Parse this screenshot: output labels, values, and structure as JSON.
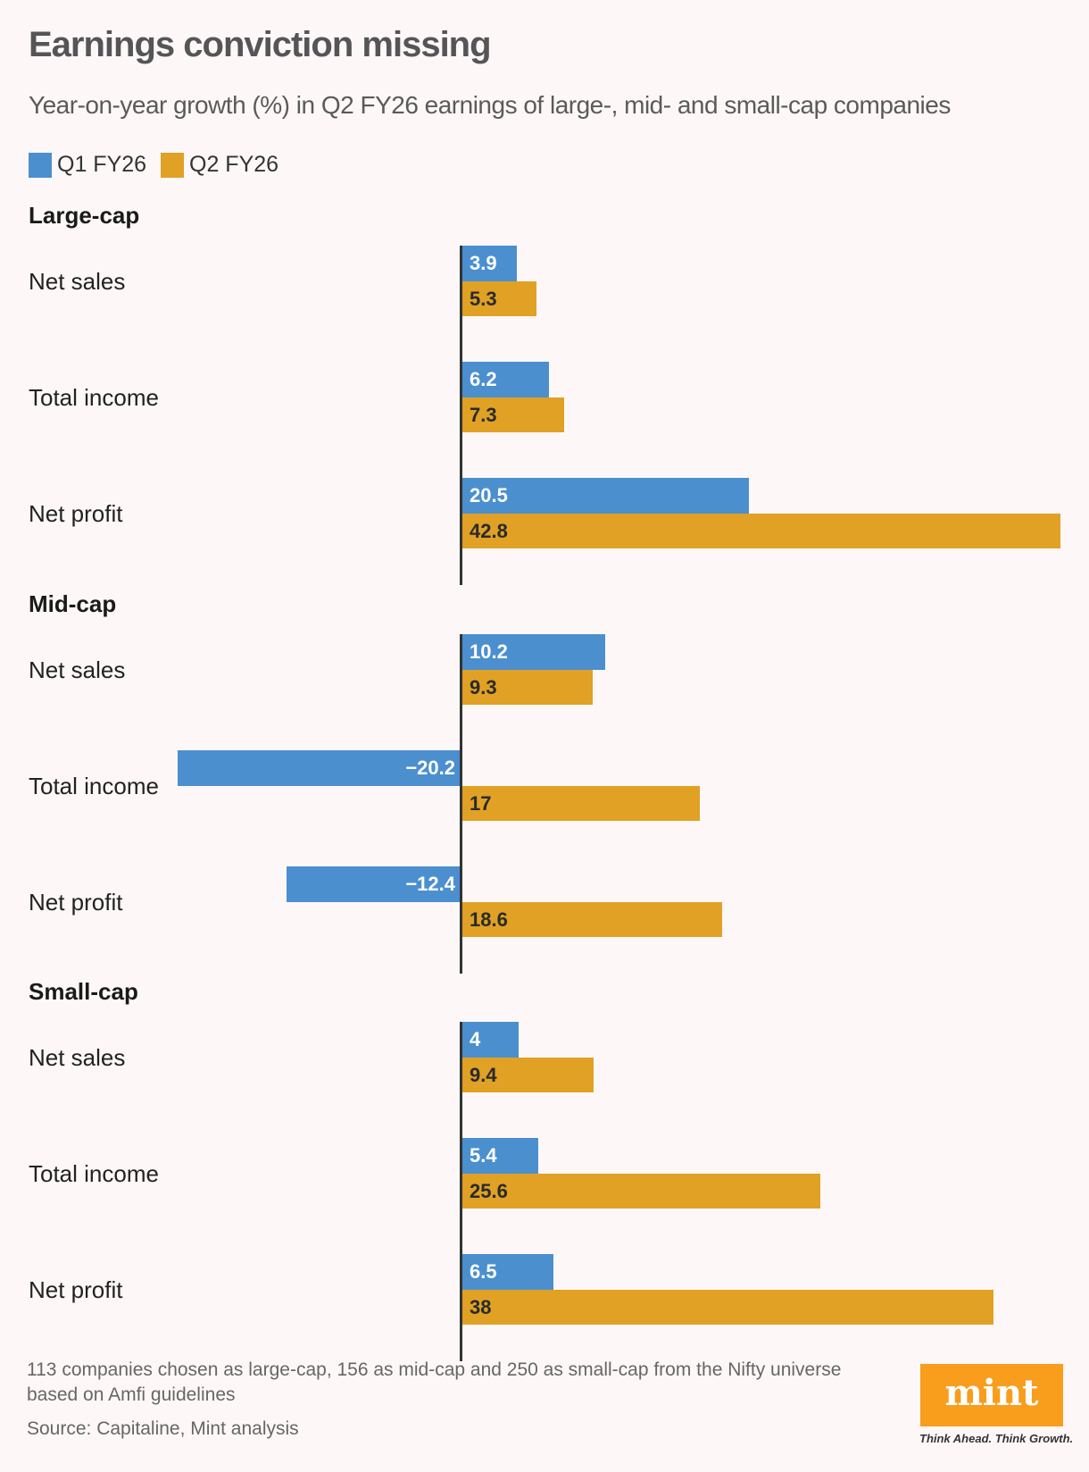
{
  "chart_data": {
    "type": "bar",
    "orientation": "horizontal",
    "title": "Earnings conviction missing",
    "subtitle": "Year-on-year growth (%) in Q2 FY26 earnings of large-, mid- and small-cap companies",
    "legend": [
      {
        "name": "Q1 FY26",
        "color": "#4b8fcf"
      },
      {
        "name": "Q2 FY26",
        "color": "#e0a125"
      }
    ],
    "legend_placement": "top-left",
    "grid": false,
    "categories": [
      "Net sales",
      "Total income",
      "Net profit"
    ],
    "panels": [
      {
        "name": "Large-cap",
        "series": [
          {
            "name": "Q1 FY26",
            "values": [
              3.9,
              6.2,
              20.5
            ],
            "labels": [
              "3.9",
              "6.2",
              "20.5"
            ]
          },
          {
            "name": "Q2 FY26",
            "values": [
              5.3,
              7.3,
              42.8
            ],
            "labels": [
              "5.3",
              "7.3",
              "42.8"
            ]
          }
        ]
      },
      {
        "name": "Mid-cap",
        "series": [
          {
            "name": "Q1 FY26",
            "values": [
              10.2,
              -20.2,
              -12.4
            ],
            "labels": [
              "10.2",
              "−20.2",
              "−12.4"
            ]
          },
          {
            "name": "Q2 FY26",
            "values": [
              9.3,
              17,
              18.6
            ],
            "labels": [
              "9.3",
              "17",
              "18.6"
            ]
          }
        ]
      },
      {
        "name": "Small-cap",
        "series": [
          {
            "name": "Q1 FY26",
            "values": [
              4,
              5.4,
              6.5
            ],
            "labels": [
              "4",
              "5.4",
              "6.5"
            ]
          },
          {
            "name": "Q2 FY26",
            "values": [
              9.4,
              25.6,
              38
            ],
            "labels": [
              "9.4",
              "25.6",
              "38"
            ]
          }
        ]
      }
    ],
    "xlim": [
      -20.2,
      42.8
    ]
  },
  "footnote": {
    "note_line1": "113 companies chosen as large-cap, 156 as mid-cap and 250 as small-cap from the Nifty universe",
    "note_line2": "based on Amfi guidelines",
    "source": "Source: Capitaline, Mint analysis"
  },
  "logo": {
    "text": "mint",
    "tagline": "Think Ahead. Think Growth."
  }
}
